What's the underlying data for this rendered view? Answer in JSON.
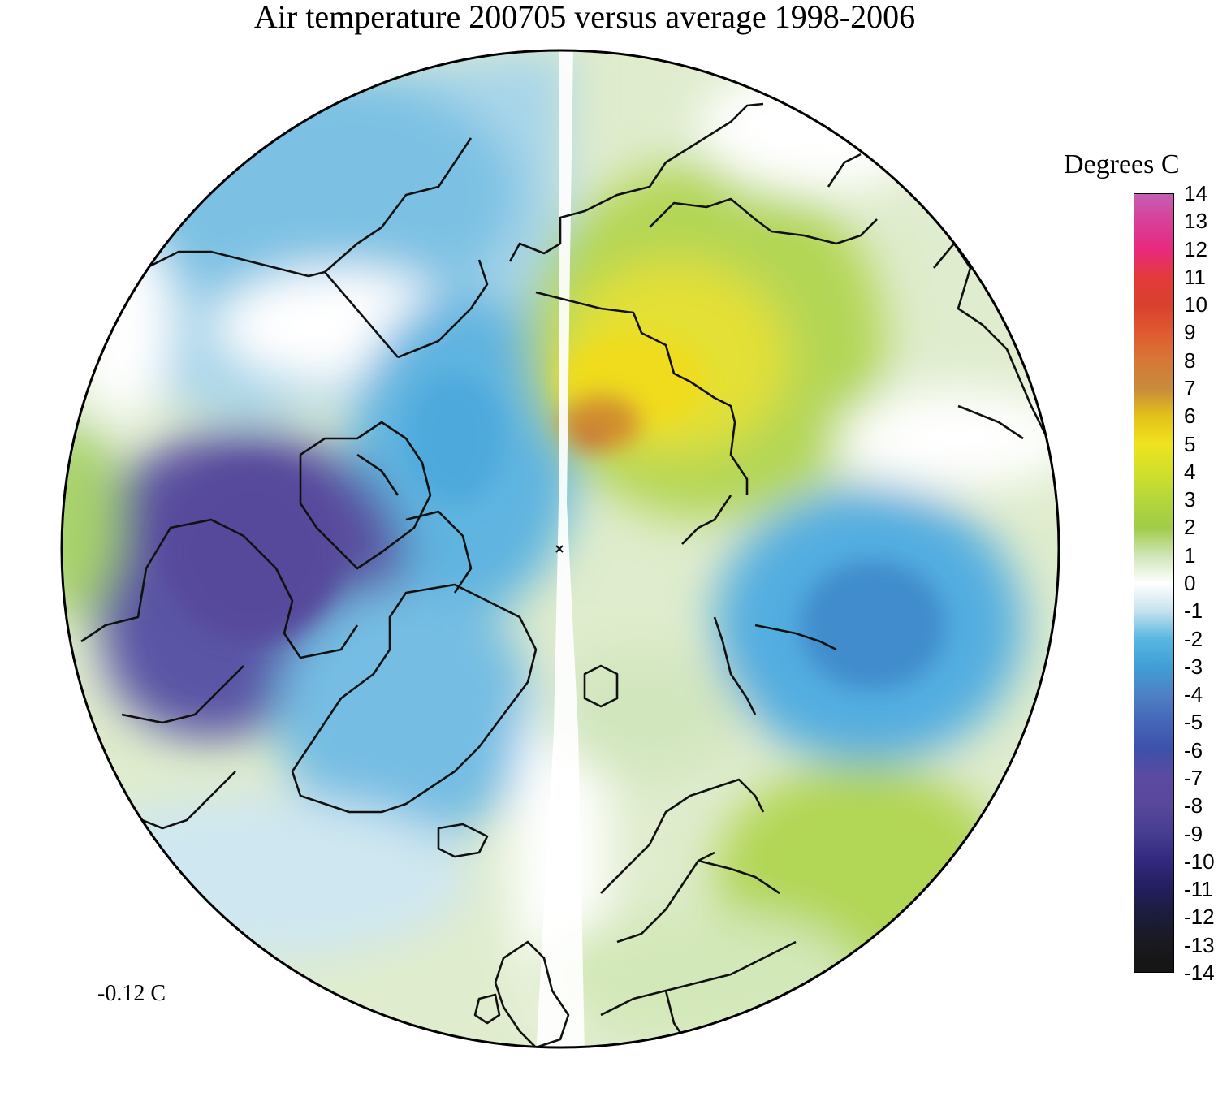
{
  "title": "Air temperature 200705 versus average 1998-2006",
  "legend": {
    "title": "Degrees C",
    "unit": "Degrees C",
    "ticks": [
      "14",
      "13",
      "12",
      "11",
      "10",
      "9",
      "8",
      "7",
      "6",
      "5",
      "4",
      "3",
      "2",
      "1",
      "0",
      "-1",
      "-2",
      "-3",
      "-4",
      "-5",
      "-6",
      "-7",
      "-8",
      "-9",
      "-10",
      "-11",
      "-12",
      "-13",
      "-14"
    ],
    "colors": [
      "#c45fb3",
      "#d83f98",
      "#e8297e",
      "#e43a3a",
      "#d9402e",
      "#e05a30",
      "#d67836",
      "#c98a3c",
      "#e3c21a",
      "#f0e21e",
      "#d2e02a",
      "#b5d63b",
      "#9fcc48",
      "#cfe5b5",
      "#ffffff",
      "#c6e3ee",
      "#5ab7df",
      "#3f9fd6",
      "#4f81c6",
      "#4566b8",
      "#3e50aa",
      "#5c4aa2",
      "#59479b",
      "#453d90",
      "#33287e",
      "#221f5e",
      "#1b1c3a",
      "#19191f",
      "#151515"
    ]
  },
  "mean_label": "-0.12 C",
  "map": {
    "projection": "north polar stereographic",
    "region": "Arctic",
    "colors": {
      "ocean_neutral": "#ffffff",
      "cold_strong": "#584e9e",
      "cold_mid": "#4fa5db",
      "cold_light": "#bfe0ee",
      "warm_light": "#dcebc8",
      "warm_mid": "#a9d356",
      "warm_strong": "#e9df1c",
      "hot": "#c8843a",
      "coast": "#111111"
    }
  }
}
